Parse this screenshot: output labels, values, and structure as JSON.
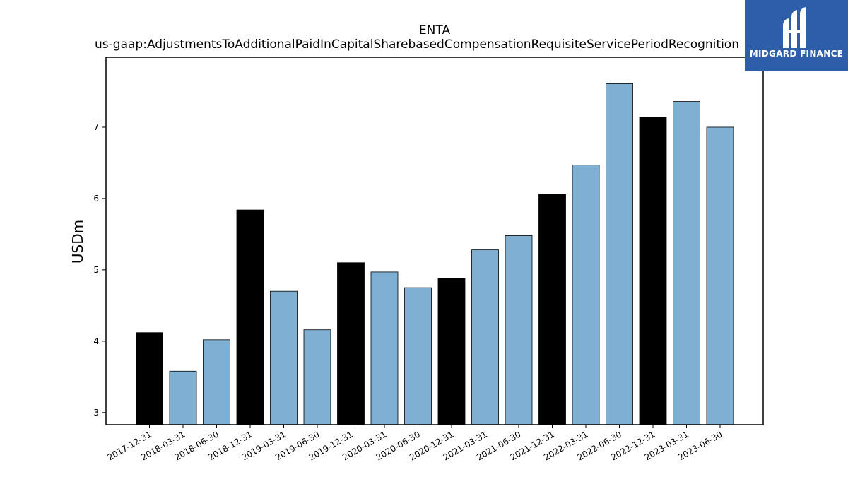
{
  "chart_data": {
    "type": "bar",
    "title": "ENTA",
    "subtitle": "us-gaap:AdjustmentsToAdditionalPaidInCapitalSharebasedCompensationRequisiteServicePeriodRecognition",
    "ylabel": "USDm",
    "xlabel": "",
    "ylim": [
      2.83,
      7.98
    ],
    "yticks": [
      3,
      4,
      5,
      6,
      7
    ],
    "categories": [
      "2017-12-31",
      "2018-03-31",
      "2018-06-30",
      "2018-12-31",
      "2019-03-31",
      "2019-06-30",
      "2019-12-31",
      "2020-03-31",
      "2020-06-30",
      "2020-12-31",
      "2021-03-31",
      "2021-06-30",
      "2021-12-31",
      "2022-03-31",
      "2022-06-30",
      "2022-12-31",
      "2023-03-31",
      "2023-06-30"
    ],
    "values": [
      4.12,
      3.58,
      4.02,
      5.84,
      4.7,
      4.16,
      5.1,
      4.97,
      4.75,
      4.88,
      5.28,
      5.48,
      6.06,
      6.47,
      7.61,
      7.14,
      7.36,
      7.0
    ],
    "bar_colors": [
      "#000000",
      "#7fb0d3",
      "#7fb0d3",
      "#000000",
      "#7fb0d3",
      "#7fb0d3",
      "#000000",
      "#7fb0d3",
      "#7fb0d3",
      "#000000",
      "#7fb0d3",
      "#7fb0d3",
      "#000000",
      "#7fb0d3",
      "#7fb0d3",
      "#000000",
      "#7fb0d3",
      "#7fb0d3"
    ],
    "grid": false,
    "legend": "none"
  },
  "logo": {
    "text": "MIDGARD FINANCE",
    "background": "#2e5eaa"
  }
}
